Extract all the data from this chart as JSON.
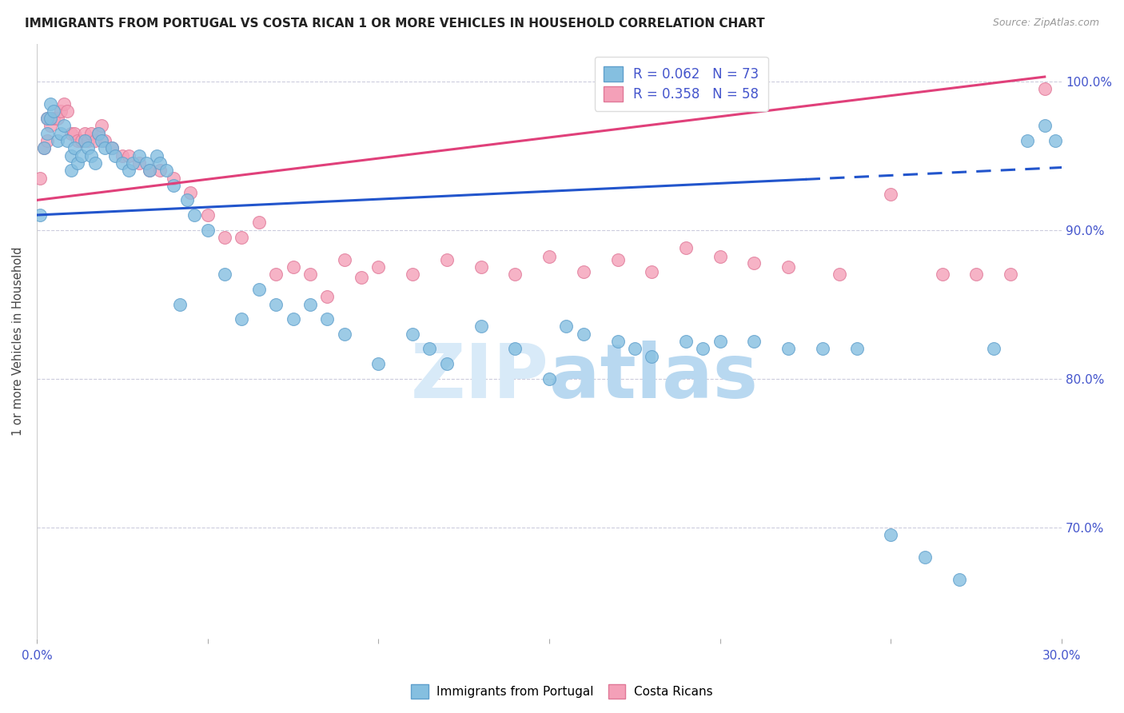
{
  "title": "IMMIGRANTS FROM PORTUGAL VS COSTA RICAN 1 OR MORE VEHICLES IN HOUSEHOLD CORRELATION CHART",
  "source": "Source: ZipAtlas.com",
  "ylabel": "1 or more Vehicles in Household",
  "xmin": 0.0,
  "xmax": 0.3,
  "ymin": 0.625,
  "ymax": 1.025,
  "yticks": [
    0.7,
    0.8,
    0.9,
    1.0
  ],
  "ytick_labels": [
    "70.0%",
    "80.0%",
    "90.0%",
    "100.0%"
  ],
  "blue_color": "#85bfe0",
  "blue_edge": "#60a0cc",
  "pink_color": "#f4a0b8",
  "pink_edge": "#e07898",
  "line_blue_color": "#2255cc",
  "line_pink_color": "#e0407a",
  "axis_tick_color": "#4455cc",
  "title_color": "#222222",
  "source_color": "#999999",
  "grid_color": "#ccccdd",
  "watermark_color": "#d8eaf8",
  "blue_line_x0": 0.0,
  "blue_line_x1": 0.3,
  "blue_line_y0": 0.91,
  "blue_line_y1": 0.942,
  "blue_line_solid_end": 0.225,
  "pink_line_x0": 0.0,
  "pink_line_x1": 0.295,
  "pink_line_y0": 0.92,
  "pink_line_y1": 1.003,
  "blue_x": [
    0.001,
    0.002,
    0.003,
    0.003,
    0.004,
    0.004,
    0.005,
    0.006,
    0.007,
    0.008,
    0.009,
    0.01,
    0.01,
    0.011,
    0.012,
    0.013,
    0.014,
    0.015,
    0.016,
    0.017,
    0.018,
    0.019,
    0.02,
    0.022,
    0.023,
    0.025,
    0.027,
    0.028,
    0.03,
    0.032,
    0.033,
    0.035,
    0.036,
    0.038,
    0.04,
    0.042,
    0.044,
    0.046,
    0.05,
    0.055,
    0.06,
    0.065,
    0.07,
    0.075,
    0.08,
    0.085,
    0.09,
    0.1,
    0.11,
    0.115,
    0.12,
    0.13,
    0.14,
    0.15,
    0.155,
    0.16,
    0.17,
    0.175,
    0.18,
    0.19,
    0.195,
    0.2,
    0.21,
    0.22,
    0.23,
    0.24,
    0.25,
    0.26,
    0.27,
    0.28,
    0.29,
    0.295,
    0.298
  ],
  "blue_y": [
    0.91,
    0.955,
    0.965,
    0.975,
    0.975,
    0.985,
    0.98,
    0.96,
    0.965,
    0.97,
    0.96,
    0.94,
    0.95,
    0.955,
    0.945,
    0.95,
    0.96,
    0.955,
    0.95,
    0.945,
    0.965,
    0.96,
    0.955,
    0.955,
    0.95,
    0.945,
    0.94,
    0.945,
    0.95,
    0.945,
    0.94,
    0.95,
    0.945,
    0.94,
    0.93,
    0.85,
    0.92,
    0.91,
    0.9,
    0.87,
    0.84,
    0.86,
    0.85,
    0.84,
    0.85,
    0.84,
    0.83,
    0.81,
    0.83,
    0.82,
    0.81,
    0.835,
    0.82,
    0.8,
    0.835,
    0.83,
    0.825,
    0.82,
    0.815,
    0.825,
    0.82,
    0.825,
    0.825,
    0.82,
    0.82,
    0.82,
    0.695,
    0.68,
    0.665,
    0.82,
    0.96,
    0.97,
    0.96
  ],
  "pink_x": [
    0.001,
    0.002,
    0.003,
    0.003,
    0.004,
    0.005,
    0.006,
    0.007,
    0.008,
    0.009,
    0.01,
    0.011,
    0.012,
    0.013,
    0.014,
    0.015,
    0.016,
    0.017,
    0.018,
    0.019,
    0.02,
    0.022,
    0.025,
    0.027,
    0.03,
    0.033,
    0.036,
    0.04,
    0.045,
    0.05,
    0.055,
    0.06,
    0.065,
    0.07,
    0.075,
    0.08,
    0.085,
    0.09,
    0.095,
    0.1,
    0.11,
    0.12,
    0.13,
    0.14,
    0.15,
    0.16,
    0.17,
    0.18,
    0.19,
    0.2,
    0.21,
    0.22,
    0.235,
    0.25,
    0.265,
    0.275,
    0.285,
    0.295
  ],
  "pink_y": [
    0.935,
    0.955,
    0.96,
    0.975,
    0.97,
    0.975,
    0.975,
    0.98,
    0.985,
    0.98,
    0.965,
    0.965,
    0.96,
    0.96,
    0.965,
    0.96,
    0.965,
    0.96,
    0.965,
    0.97,
    0.96,
    0.955,
    0.95,
    0.95,
    0.945,
    0.94,
    0.94,
    0.935,
    0.925,
    0.91,
    0.895,
    0.895,
    0.905,
    0.87,
    0.875,
    0.87,
    0.855,
    0.88,
    0.868,
    0.875,
    0.87,
    0.88,
    0.875,
    0.87,
    0.882,
    0.872,
    0.88,
    0.872,
    0.888,
    0.882,
    0.878,
    0.875,
    0.87,
    0.924,
    0.87,
    0.87,
    0.87,
    0.995
  ]
}
